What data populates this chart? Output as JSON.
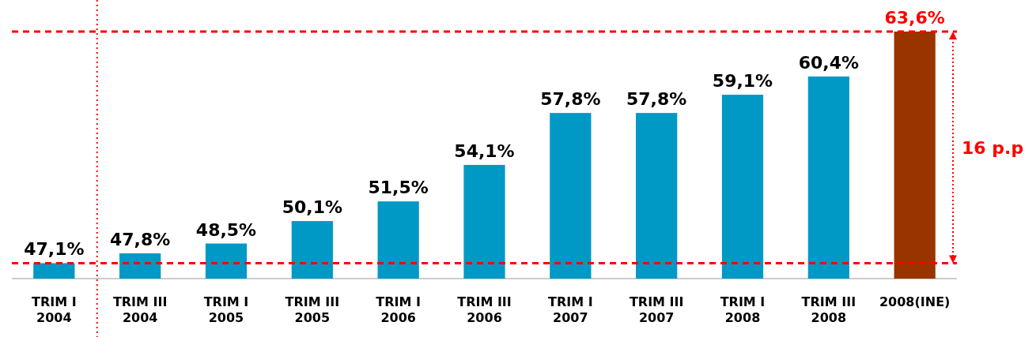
{
  "chart_data": {
    "type": "bar",
    "categories": [
      "TRIM I\n2004",
      "TRIM III\n2004",
      "TRIM I\n2005",
      "TRIM III\n2005",
      "TRIM I\n2006",
      "TRIM III\n2006",
      "TRIM I\n2007",
      "TRIM III\n2007",
      "TRIM I\n2008",
      "TRIM III\n2008",
      "2008(INE)"
    ],
    "values": [
      47.1,
      47.8,
      48.5,
      50.1,
      51.5,
      54.1,
      57.8,
      57.8,
      59.1,
      60.4,
      63.6
    ],
    "colors": [
      "#0099c6",
      "#0099c6",
      "#0099c6",
      "#0099c6",
      "#0099c6",
      "#0099c6",
      "#0099c6",
      "#0099c6",
      "#0099c6",
      "#0099c6",
      "#993300"
    ],
    "value_labels": [
      "47,1%",
      "47,8%",
      "48,5%",
      "50,1%",
      "51,5%",
      "54,1%",
      "57,8%",
      "57,8%",
      "59,1%",
      "60,4%",
      "63,6%"
    ],
    "ref_lines": [
      {
        "axis": "y",
        "value": 47.1,
        "color": "#ff0000",
        "line_style": "dashed"
      },
      {
        "axis": "y",
        "value": 63.6,
        "color": "#ff0000",
        "line_style": "dashed"
      }
    ],
    "ylim": [
      46,
      63.6
    ],
    "annotations": [
      "16 p.p"
    ]
  }
}
